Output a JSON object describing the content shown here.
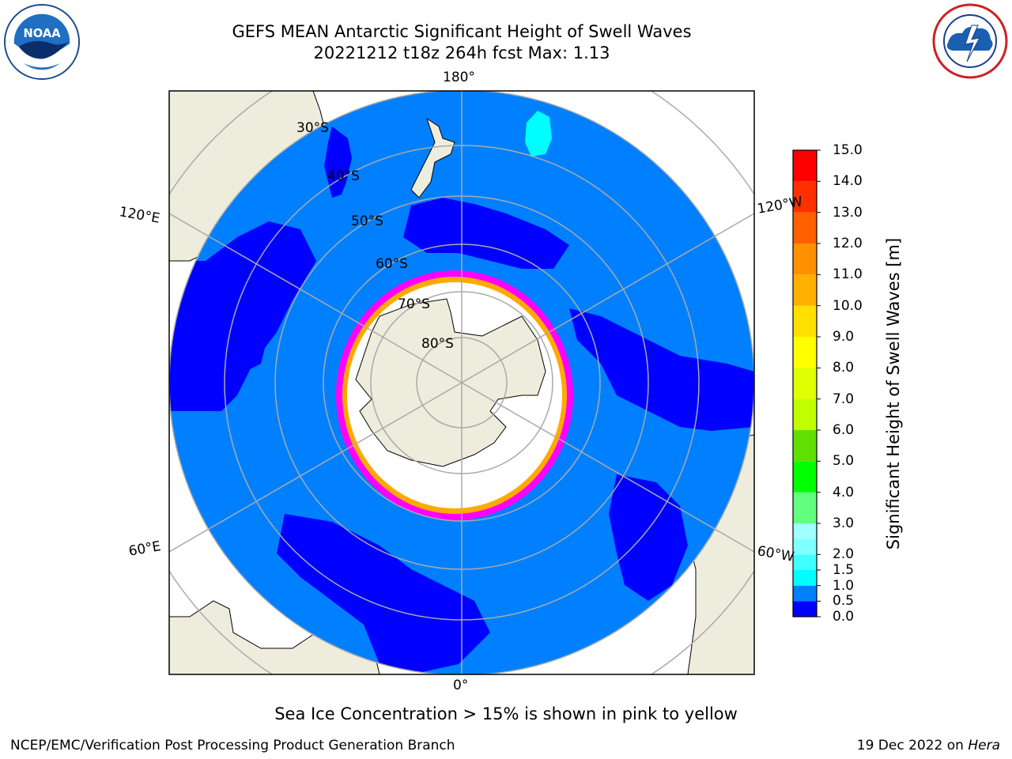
{
  "header": {
    "title_line1": "GEFS MEAN Antarctic Significant Height of Swell Waves",
    "title_line2": "20221212 t18z 264h fcst   Max: 1.13"
  },
  "logos": {
    "left": "noaa-logo",
    "left_text": "NOAA",
    "right": "nws-logo"
  },
  "map": {
    "projection": "south-polar-stereographic",
    "longitude_labels": {
      "top": "180°",
      "bottom": "0°",
      "upper_left": "120°E",
      "lower_left": "60°E",
      "upper_right": "120°W",
      "lower_right": "60°W"
    },
    "latitude_labels": [
      "30°S",
      "40°S",
      "50°S",
      "60°S",
      "70°S",
      "80°S"
    ],
    "colors": {
      "ocean_low": "#0000ff",
      "ocean_mid": "#0080ff",
      "swell_1_5": "#00ffff",
      "land": "#eeecdc",
      "sea_ice_edge": "#ff00ff",
      "sea_ice_mid": "#ffaa00",
      "sea_ice_core": "#ffffff",
      "grid": "#aaaaaa"
    }
  },
  "chart_data": {
    "type": "heatmap",
    "title": "GEFS MEAN Antarctic Significant Height of Swell Waves",
    "max_value": 1.13,
    "colorbar": {
      "label": "Significant Height of Swell Waves [m]",
      "ticks": [
        "0.0",
        "0.5",
        "1.0",
        "1.5",
        "2.0",
        "2.5",
        "3.0",
        "3.5",
        "4.0",
        "4.5",
        "5.0",
        "5.5",
        "6.0",
        "6.5",
        "7.0",
        "7.5",
        "8.0",
        "8.5",
        "9.0",
        "9.5",
        "10.0",
        "10.5",
        "11.0",
        "11.5",
        "12.0",
        "12.5",
        "13.0",
        "13.5",
        "14.0",
        "14.5",
        "15.0"
      ],
      "tick_labels_shown": [
        "0.0",
        "0.5",
        "1.0",
        "1.5",
        "2.0",
        "3.0",
        "4.0",
        "5.0",
        "6.0",
        "7.0",
        "8.0",
        "9.0",
        "10.0",
        "11.0",
        "12.0",
        "13.0",
        "14.0",
        "15.0"
      ],
      "range": [
        0,
        15
      ],
      "bins": [
        {
          "from": 0.0,
          "to": 0.5,
          "color": "#0000ff"
        },
        {
          "from": 0.5,
          "to": 1.0,
          "color": "#0080ff"
        },
        {
          "from": 1.0,
          "to": 1.5,
          "color": "#00ffff"
        },
        {
          "from": 1.5,
          "to": 2.0,
          "color": "#40ffff"
        },
        {
          "from": 2.0,
          "to": 2.5,
          "color": "#80ffff"
        },
        {
          "from": 2.5,
          "to": 3.0,
          "color": "#a0ffff"
        },
        {
          "from": 3.0,
          "to": 4.0,
          "color": "#60ff80"
        },
        {
          "from": 4.0,
          "to": 5.0,
          "color": "#00ff00"
        },
        {
          "from": 5.0,
          "to": 6.0,
          "color": "#60e000"
        },
        {
          "from": 6.0,
          "to": 7.0,
          "color": "#c0ff00"
        },
        {
          "from": 7.0,
          "to": 8.0,
          "color": "#e0ff00"
        },
        {
          "from": 8.0,
          "to": 9.0,
          "color": "#ffff00"
        },
        {
          "from": 9.0,
          "to": 10.0,
          "color": "#ffe000"
        },
        {
          "from": 10.0,
          "to": 11.0,
          "color": "#ffb000"
        },
        {
          "from": 11.0,
          "to": 12.0,
          "color": "#ff9000"
        },
        {
          "from": 12.0,
          "to": 13.0,
          "color": "#ff6000"
        },
        {
          "from": 13.0,
          "to": 14.0,
          "color": "#ff3000"
        },
        {
          "from": 14.0,
          "to": 15.0,
          "color": "#ff0000"
        }
      ]
    }
  },
  "notes": {
    "sea_ice": "Sea Ice Concentration > 15% is shown in pink to yellow"
  },
  "footer": {
    "left": "NCEP/EMC/Verification Post Processing Product Generation Branch",
    "right_prefix": "19 Dec 2022 on ",
    "right_machine": "Hera"
  }
}
